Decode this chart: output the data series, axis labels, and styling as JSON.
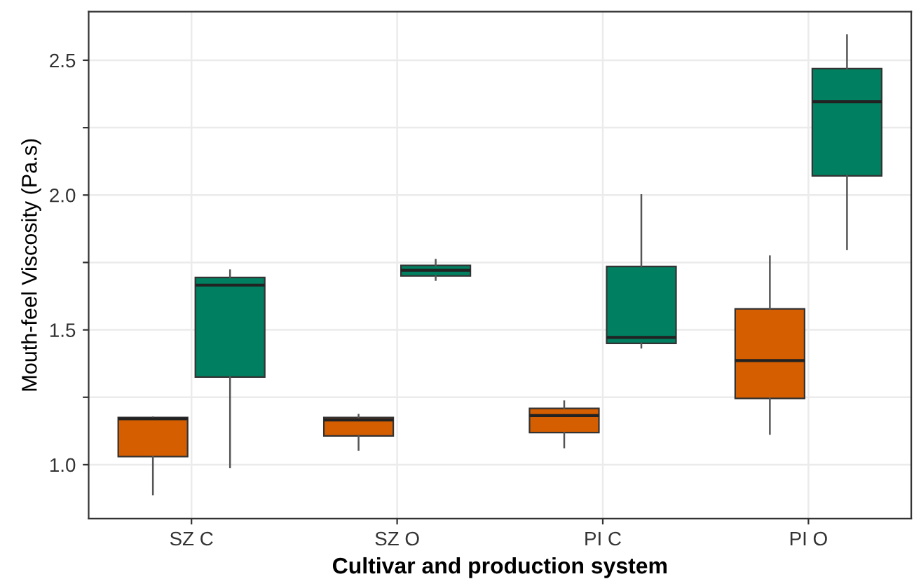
{
  "chart_data": {
    "type": "box",
    "xlabel": "Cultivar and production system",
    "ylabel": "Mouth-feel Viscosity (Pa.s)",
    "categories": [
      "SZ C",
      "SZ O",
      "PI C",
      "PI O"
    ],
    "series": [
      {
        "color": "#d55e00",
        "boxes": [
          {
            "low": 0.89,
            "q1": 1.03,
            "median": 1.17,
            "q3": 1.175,
            "high": 1.175
          },
          {
            "low": 1.055,
            "q1": 1.107,
            "median": 1.166,
            "q3": 1.175,
            "high": 1.185
          },
          {
            "low": 1.064,
            "q1": 1.119,
            "median": 1.182,
            "q3": 1.209,
            "high": 1.235
          },
          {
            "low": 1.114,
            "q1": 1.246,
            "median": 1.386,
            "q3": 1.578,
            "high": 1.773
          }
        ]
      },
      {
        "color": "#008060",
        "boxes": [
          {
            "low": 0.99,
            "q1": 1.325,
            "median": 1.666,
            "q3": 1.694,
            "high": 1.721
          },
          {
            "low": 1.685,
            "q1": 1.7,
            "median": 1.721,
            "q3": 1.739,
            "high": 1.76
          },
          {
            "low": 1.434,
            "q1": 1.45,
            "median": 1.472,
            "q3": 1.735,
            "high": 2.0
          },
          {
            "low": 1.799,
            "q1": 2.071,
            "median": 2.346,
            "q3": 2.469,
            "high": 2.593
          }
        ]
      }
    ],
    "ylim": [
      0.8,
      2.68
    ],
    "yticks": [
      {
        "value": 1,
        "label": "1.0"
      },
      {
        "value": 1.25,
        "label": null
      },
      {
        "value": 1.5,
        "label": "1.5"
      },
      {
        "value": 1.75,
        "label": null
      },
      {
        "value": 2,
        "label": "2.0"
      },
      {
        "value": 2.25,
        "label": null
      },
      {
        "value": 2.5,
        "label": "2.5"
      }
    ],
    "grid": true
  }
}
